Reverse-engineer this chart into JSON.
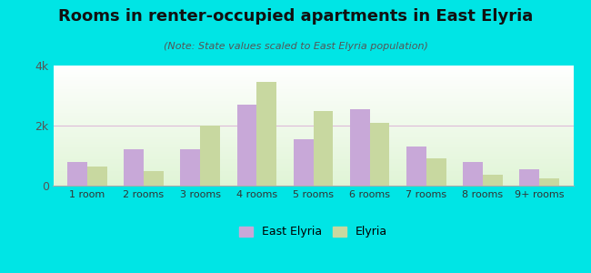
{
  "title": "Rooms in renter-occupied apartments in East Elyria",
  "subtitle": "(Note: State values scaled to East Elyria population)",
  "categories": [
    "1 room",
    "2 rooms",
    "3 rooms",
    "4 rooms",
    "5 rooms",
    "6 rooms",
    "7 rooms",
    "8 rooms",
    "9+ rooms"
  ],
  "east_elyria": [
    800,
    1200,
    1200,
    2700,
    1550,
    2550,
    1300,
    800,
    550
  ],
  "elyria": [
    650,
    500,
    2000,
    3450,
    2500,
    2100,
    900,
    350,
    230
  ],
  "east_elyria_color": "#c8a8d8",
  "elyria_color": "#c8d8a0",
  "background_color": "#00e5e5",
  "ylim": [
    0,
    4000
  ],
  "yticks": [
    0,
    2000,
    4000
  ],
  "ytick_labels": [
    "0",
    "2k",
    "4k"
  ],
  "bar_width": 0.35,
  "legend_labels": [
    "East Elyria",
    "Elyria"
  ],
  "title_fontsize": 13,
  "subtitle_fontsize": 8,
  "tick_fontsize": 8
}
